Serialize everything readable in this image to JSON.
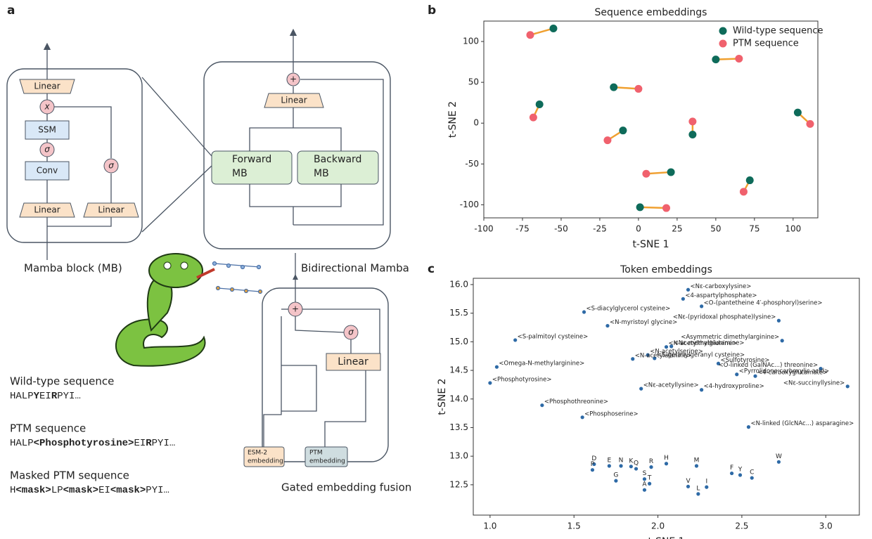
{
  "panel_labels": {
    "a": "a",
    "b": "b",
    "c": "c"
  },
  "mamba_block": {
    "linear_top": "Linear",
    "multiply": "x",
    "ssm": "SSM",
    "sigma_1": "σ",
    "conv": "Conv",
    "linear_bottom_left": "Linear",
    "linear_bottom_right": "Linear",
    "sigma_2": "σ",
    "caption": "Mamba block (MB)"
  },
  "bidirectional_mamba": {
    "add": "+",
    "linear": "Linear",
    "forward": [
      "Forward",
      "MB"
    ],
    "backward": [
      "Backward",
      "MB"
    ],
    "caption": "Bidirectional Mamba"
  },
  "gated_fusion": {
    "add": "+",
    "sigma": "σ",
    "linear": "Linear",
    "esm2": [
      "ESM-2",
      "embedding"
    ],
    "ptm": [
      "PTM",
      "embedding"
    ],
    "caption": "Gated embedding fusion"
  },
  "sequences": [
    {
      "label": "Wild-type sequence",
      "segments": [
        "HALP",
        "Y",
        "EI",
        "R",
        "PYI…"
      ]
    },
    {
      "label": "PTM sequence",
      "segments": [
        "HALP",
        "<Phosphotyrosine>",
        "EI",
        "R",
        "PYI…"
      ]
    },
    {
      "label": "Masked PTM sequence",
      "segments": [
        "H",
        "<mask>",
        "LP",
        "<mask>",
        "EI",
        "<mask>",
        "PYI…"
      ]
    }
  ],
  "chart_data": [
    {
      "type": "scatter",
      "title": "Sequence embeddings",
      "xlabel": "t-SNE 1",
      "ylabel": "t-SNE 2",
      "xlim": [
        -100,
        116
      ],
      "xticks": [
        -100,
        -75,
        -50,
        -25,
        0,
        25,
        50,
        75,
        100
      ],
      "ylim": [
        -116,
        125
      ],
      "yticks": [
        -100,
        -50,
        0,
        50,
        100
      ],
      "legend": "upper right",
      "pair_line_color": "#f0a030",
      "series": [
        {
          "name": "Wild-type sequence",
          "color": "#0e6b5a",
          "x": [
            -55,
            -64,
            -16,
            -10,
            35,
            50,
            103,
            21,
            72,
            1
          ],
          "values": [
            116,
            23,
            44,
            -9,
            -14,
            78,
            13,
            -60,
            -70,
            -103
          ]
        },
        {
          "name": "PTM sequence",
          "color": "#f0616d",
          "x": [
            -70,
            -68,
            0,
            -20,
            35,
            65,
            111,
            5,
            68,
            18
          ],
          "values": [
            108,
            7,
            42,
            -21,
            2,
            79,
            -1,
            -62,
            -84,
            -104
          ]
        }
      ]
    },
    {
      "type": "scatter",
      "title": "Token embeddings",
      "xlabel": "t-SNE 1",
      "ylabel": "t-SNE 2",
      "xlim": [
        0.9,
        3.2
      ],
      "xticks": [
        {
          "value": 1,
          "label": "1.0"
        },
        1.5,
        {
          "value": 2,
          "label": "2.0"
        },
        2.5,
        {
          "value": 3,
          "label": "3.0"
        }
      ],
      "ylim": [
        11.97,
        16.11
      ],
      "yticks": [
        12.5,
        {
          "value": 13,
          "label": "13.0"
        },
        13.5,
        {
          "value": 14,
          "label": "14.0"
        },
        14.5,
        {
          "value": 15,
          "label": "15.0"
        },
        15.5,
        {
          "value": 16,
          "label": "16.0"
        }
      ],
      "color": "#2e6aa6",
      "labels": [
        "<Nε-carboxylysine>",
        "<4-aspartylphosphate>",
        "<O-(pantetheine 4′-phosphoryl)serine>",
        "<S-diacylglycerol cysteine>",
        "<Nε-(pyridoxal phosphate)lysine>",
        "<N-myristoyl glycine>",
        "<S-palmitoyl cysteine>",
        "<Asymmetric dimethylarginine>",
        "<Nε-methylglutamine>",
        "<N-acetylmethionine>",
        "<N-acetylserine>",
        "<S-geranylgeranyl cysteine>",
        "<N-acetylalanine>",
        "<Sulfotyrosine>",
        "<Omega-N-methylarginine>",
        "<O-linked (GalNAc...) threonine>",
        "<Pyrrolidone carboxylic acid>",
        "<4-carboxyglutamate>",
        "<Phosphotyrosine>",
        "<Nε-acetyllysine>",
        "<4-hydroxyproline>",
        "<Nε-succinyllysine>",
        "<Phosphothreonine>",
        "<Phosphoserine>",
        "<N-linked (GlcNAc...) asparagine>",
        "D",
        "P",
        "E",
        "N",
        "K",
        "Q",
        "G",
        "R",
        "H",
        "S",
        "T",
        "A",
        "V",
        "M",
        "L",
        "I",
        "F",
        "Y",
        "C",
        "W"
      ],
      "x": [
        2.18,
        2.15,
        2.26,
        1.56,
        2.72,
        1.7,
        1.15,
        2.74,
        2.08,
        2.05,
        1.94,
        1.98,
        1.85,
        2.36,
        1.04,
        2.97,
        2.47,
        2.58,
        1.0,
        1.9,
        2.26,
        3.13,
        1.31,
        1.55,
        2.54,
        1.62,
        1.61,
        1.71,
        1.78,
        1.84,
        1.87,
        1.75,
        1.96,
        2.05,
        1.92,
        1.95,
        1.92,
        2.18,
        2.23,
        2.24,
        2.29,
        2.44,
        2.49,
        2.56,
        2.72
      ],
      "values": [
        15.91,
        15.75,
        15.62,
        15.52,
        15.37,
        15.28,
        15.03,
        15.02,
        14.92,
        14.91,
        14.77,
        14.71,
        14.7,
        14.62,
        14.56,
        14.53,
        14.43,
        14.4,
        14.28,
        14.18,
        14.16,
        14.22,
        13.89,
        13.68,
        13.51,
        12.86,
        12.76,
        12.83,
        12.83,
        12.82,
        12.78,
        12.57,
        12.81,
        12.87,
        12.6,
        12.52,
        12.41,
        12.47,
        12.83,
        12.34,
        12.46,
        12.7,
        12.67,
        12.62,
        12.9
      ]
    }
  ]
}
